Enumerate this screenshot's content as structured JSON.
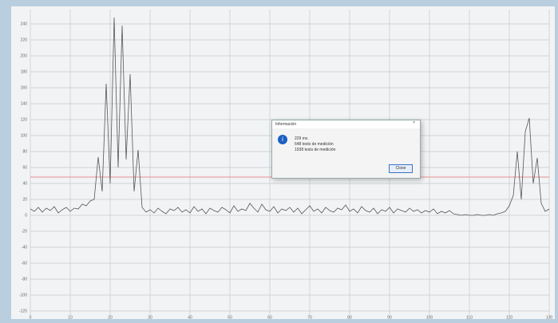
{
  "chart_data": {
    "type": "line",
    "x": [
      0,
      1,
      2,
      3,
      4,
      5,
      6,
      7,
      8,
      9,
      10,
      11,
      12,
      13,
      14,
      15,
      16,
      17,
      18,
      19,
      20,
      21,
      22,
      23,
      24,
      25,
      26,
      27,
      28,
      29,
      30,
      31,
      32,
      33,
      34,
      35,
      36,
      37,
      38,
      39,
      40,
      41,
      42,
      43,
      44,
      45,
      46,
      47,
      48,
      49,
      50,
      51,
      52,
      53,
      54,
      55,
      56,
      57,
      58,
      59,
      60,
      61,
      62,
      63,
      64,
      65,
      66,
      67,
      68,
      69,
      70,
      71,
      72,
      73,
      74,
      75,
      76,
      77,
      78,
      79,
      80,
      81,
      82,
      83,
      84,
      85,
      86,
      87,
      88,
      89,
      90,
      91,
      92,
      93,
      94,
      95,
      96,
      97,
      98,
      99,
      100,
      101,
      102,
      103,
      104,
      105,
      106,
      107,
      108,
      109,
      110,
      111,
      112,
      113,
      114,
      115,
      116,
      117,
      118,
      119,
      120,
      121,
      122,
      123,
      124,
      125,
      126,
      127,
      128,
      129,
      130
    ],
    "series": [
      {
        "color": "#555555",
        "values": [
          8,
          5,
          10,
          4,
          9,
          6,
          11,
          3,
          7,
          10,
          5,
          9,
          8,
          14,
          12,
          18,
          20,
          73,
          30,
          165,
          40,
          248,
          60,
          238,
          70,
          177,
          30,
          82,
          10,
          4,
          7,
          3,
          9,
          5,
          2,
          8,
          6,
          10,
          4,
          7,
          3,
          11,
          5,
          8,
          2,
          9,
          6,
          4,
          10,
          7,
          3,
          12,
          5,
          8,
          6,
          15,
          9,
          4,
          14,
          7,
          5,
          11,
          3,
          8,
          6,
          10,
          4,
          9,
          2,
          7,
          12,
          5,
          8,
          3,
          10,
          6,
          4,
          9,
          7,
          13,
          5,
          8,
          3,
          11,
          6,
          4,
          9,
          2,
          7,
          5,
          10,
          3,
          8,
          6,
          4,
          9,
          5,
          7,
          3,
          6,
          4,
          8,
          2,
          5,
          3,
          6,
          2,
          1,
          0,
          1,
          0,
          0,
          1,
          0,
          0,
          1,
          0,
          2,
          3,
          5,
          12,
          25,
          80,
          20,
          105,
          122,
          40,
          72,
          15,
          5,
          8
        ]
      }
    ],
    "threshold": 48,
    "threshold_color": "#e89090",
    "xlim": [
      0,
      130
    ],
    "xticks": [
      0,
      10,
      20,
      30,
      40,
      50,
      60,
      70,
      80,
      90,
      100,
      110,
      120,
      130
    ],
    "ylim": [
      -125,
      258
    ],
    "yticks": [
      -120,
      -100,
      -80,
      -60,
      -40,
      -20,
      0,
      20,
      40,
      60,
      80,
      100,
      120,
      140,
      160,
      180,
      200,
      220,
      240
    ],
    "grid": true
  },
  "dialog": {
    "title": "Información",
    "lines": [
      "229 ms",
      "648 tests de medición",
      "1938 tests de medición"
    ],
    "button": "Close"
  }
}
